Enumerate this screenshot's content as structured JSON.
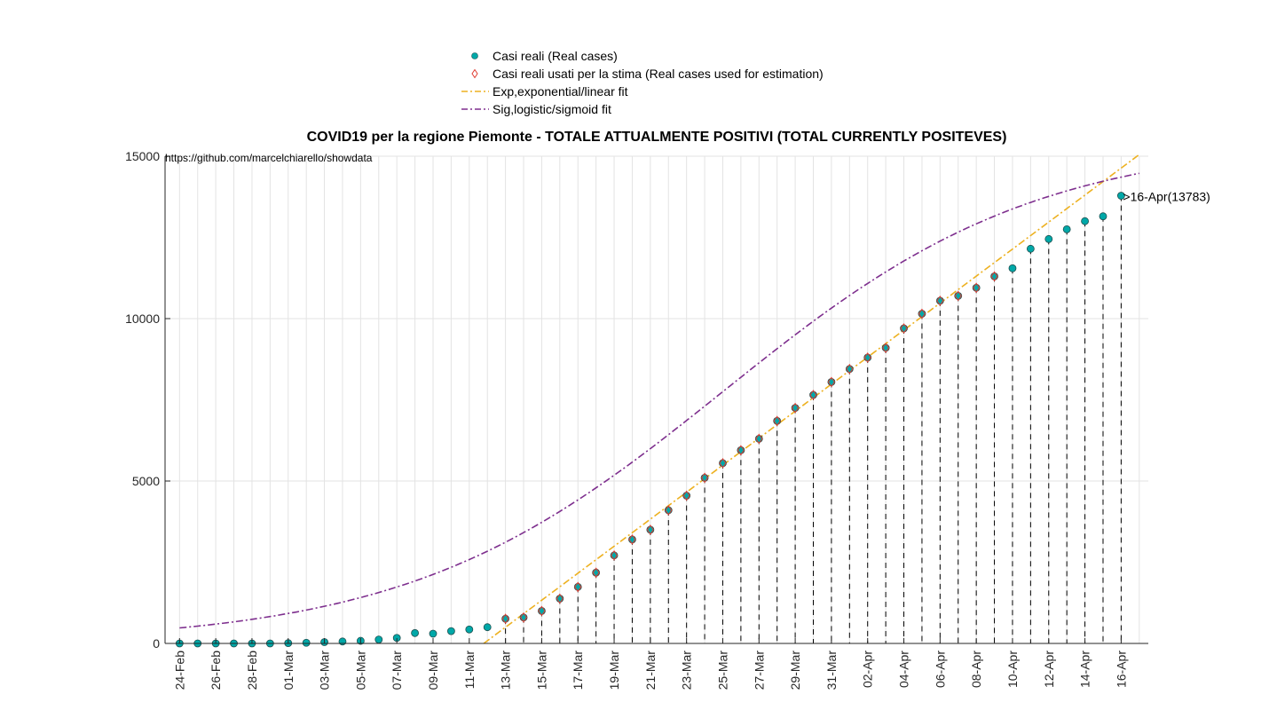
{
  "chart_data": {
    "type": "scatter",
    "title": "COVID19 per la regione Piemonte - TOTALE ATTUALMENTE POSITIVI (TOTAL CURRENTLY POSITEVES)",
    "source_text": "https://github.com/marcelchiarello/showdata",
    "annotation": ">16-Apr(13783)",
    "xlabel": "",
    "ylabel": "",
    "ylim": [
      0,
      15000
    ],
    "yticks": [
      0,
      5000,
      10000,
      15000
    ],
    "xlim": [
      -0.8,
      53.5
    ],
    "grid": true,
    "legend_position": "top-center",
    "x_tick_labels": [
      "24-Feb",
      "26-Feb",
      "28-Feb",
      "01-Mar",
      "03-Mar",
      "05-Mar",
      "07-Mar",
      "09-Mar",
      "11-Mar",
      "13-Mar",
      "15-Mar",
      "17-Mar",
      "19-Mar",
      "21-Mar",
      "23-Mar",
      "25-Mar",
      "27-Mar",
      "29-Mar",
      "31-Mar",
      "02-Apr",
      "04-Apr",
      "06-Apr",
      "08-Apr",
      "10-Apr",
      "12-Apr",
      "14-Apr",
      "16-Apr"
    ],
    "series": [
      {
        "name": "Casi reali (Real cases)",
        "marker": "circle",
        "color": "#00A8A8",
        "x": [
          0,
          1,
          2,
          3,
          4,
          5,
          6,
          7,
          8,
          9,
          10,
          11,
          12,
          13,
          14,
          15,
          16,
          17,
          18,
          19,
          20,
          21,
          22,
          23,
          24,
          25,
          26,
          27,
          28,
          29,
          30,
          31,
          32,
          33,
          34,
          35,
          36,
          37,
          38,
          39,
          40,
          41,
          42,
          43,
          44,
          45,
          46,
          47,
          48,
          49,
          50,
          51,
          52
        ],
        "values": [
          0,
          0,
          0,
          0,
          0,
          0,
          10,
          20,
          40,
          60,
          80,
          120,
          170,
          320,
          300,
          380,
          430,
          500,
          760,
          800,
          1000,
          1380,
          1740,
          2180,
          2710,
          3200,
          3500,
          4100,
          4550,
          5100,
          5550,
          5950,
          6300,
          6850,
          7250,
          7650,
          8050,
          8450,
          8800,
          9100,
          9700,
          10150,
          10550,
          10700,
          10950,
          11300,
          11550,
          12150,
          12450,
          12750,
          13000,
          13150,
          13783
        ]
      },
      {
        "name": "Casi reali usati per la stima (Real cases used for estimation)",
        "marker": "diamond",
        "color": "#E03C31",
        "x": [
          18,
          19,
          20,
          21,
          22,
          23,
          24,
          25,
          26,
          27,
          28,
          29,
          30,
          31,
          32,
          33,
          34,
          35,
          36,
          37,
          38,
          39,
          40,
          41,
          42,
          43,
          44,
          45
        ],
        "values": [
          760,
          800,
          1000,
          1380,
          1740,
          2180,
          2710,
          3200,
          3500,
          4100,
          4550,
          5100,
          5550,
          5950,
          6300,
          6850,
          7250,
          7650,
          8050,
          8450,
          8800,
          9100,
          9700,
          10150,
          10550,
          10700,
          10950,
          11300
        ]
      },
      {
        "name": "Exp,exponential/linear fit",
        "line": "dash-dot",
        "color": "#EDB120",
        "x": [
          16.8,
          53
        ],
        "values": [
          0,
          15050
        ]
      },
      {
        "name": "Sig,logistic/sigmoid fit",
        "line": "dash-dot",
        "color": "#7E2F8E",
        "logistic": {
          "K": 15500,
          "r": 0.115,
          "t0": 30
        },
        "x_range": [
          0,
          53
        ]
      }
    ],
    "vertical_dashed_lines": {
      "from_x": 18,
      "to_x": 53,
      "color": "#000000"
    }
  }
}
